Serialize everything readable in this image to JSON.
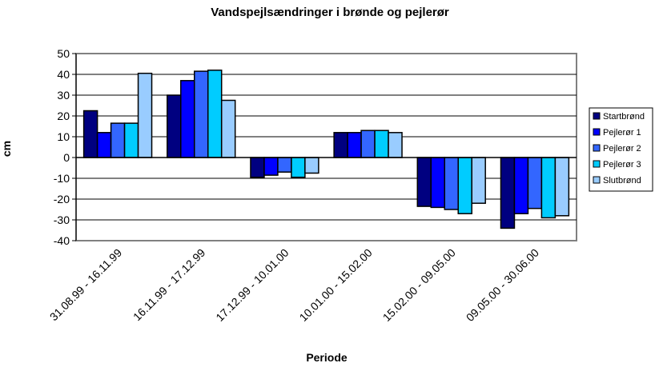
{
  "chart_data": {
    "type": "bar",
    "title": "Vandspejlsændringer i brønde og pejlerør",
    "xlabel": "Periode",
    "ylabel": "cm",
    "ylim": [
      -40,
      50
    ],
    "ytick_step": 10,
    "grid": true,
    "legend_position": "right",
    "categories": [
      "31.08.99 - 16.11.99",
      "16.11.99 - 17.12.99",
      "17.12.99 - 10.01.00",
      "10.01.00 - 15.02.00",
      "15.02.00 - 09.05.00",
      "09.05.00 - 30.06.00"
    ],
    "series": [
      {
        "name": "Startbrønd",
        "color": "#000080",
        "values": [
          22.5,
          30,
          -9.5,
          12,
          -23.5,
          -34
        ]
      },
      {
        "name": "Pejlerør 1",
        "color": "#0000FF",
        "values": [
          12,
          37,
          -8.5,
          12,
          -24,
          -27
        ]
      },
      {
        "name": "Pejlerør 2",
        "color": "#3366FF",
        "values": [
          16.5,
          41.5,
          -7,
          13,
          -25,
          -24.5
        ]
      },
      {
        "name": "Pejlerør 3",
        "color": "#00CCFF",
        "values": [
          16.5,
          42,
          -9.5,
          13,
          -27,
          -29
        ]
      },
      {
        "name": "Slutbrønd",
        "color": "#99CCFF",
        "values": [
          40.5,
          27.5,
          -7.5,
          12,
          -22,
          -28
        ]
      }
    ]
  }
}
